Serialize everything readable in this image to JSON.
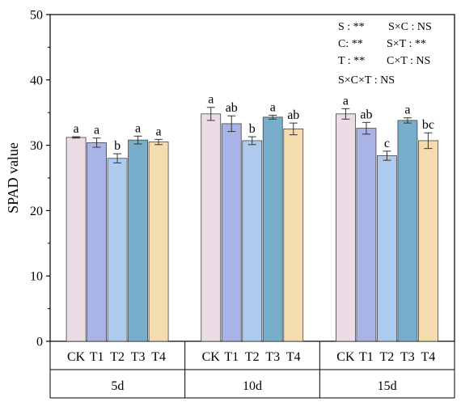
{
  "chart_data": {
    "type": "bar",
    "ylabel": "SPAD value",
    "ylim": [
      0,
      50
    ],
    "yticks": [
      0,
      10,
      20,
      30,
      40,
      50
    ],
    "categories": [
      "CK",
      "T1",
      "T2",
      "T3",
      "T4"
    ],
    "colors": [
      "#ecdce6",
      "#aab3e6",
      "#aecbee",
      "#78aecb",
      "#f5dcae"
    ],
    "groups": [
      {
        "label": "5d",
        "values": [
          31.2,
          30.4,
          28.0,
          30.8,
          30.5
        ],
        "errors": [
          0.1,
          0.7,
          0.7,
          0.6,
          0.4
        ],
        "letters": [
          "a",
          "a",
          "b",
          "a",
          "a"
        ]
      },
      {
        "label": "10d",
        "values": [
          34.8,
          33.3,
          30.7,
          34.3,
          32.5
        ],
        "errors": [
          1.0,
          1.2,
          0.6,
          0.3,
          0.9
        ],
        "letters": [
          "a",
          "ab",
          "b",
          "a",
          "ab"
        ]
      },
      {
        "label": "15d",
        "values": [
          34.8,
          32.6,
          28.4,
          33.8,
          30.7
        ],
        "errors": [
          0.8,
          0.9,
          0.7,
          0.4,
          1.2
        ],
        "letters": [
          "a",
          "ab",
          "c",
          "a",
          "bc"
        ]
      }
    ],
    "annotations": [
      "S : **",
      "S×C : NS",
      "C: **",
      "S×T : **",
      "T : **",
      "C×T : NS",
      "S×C×T : NS"
    ]
  }
}
